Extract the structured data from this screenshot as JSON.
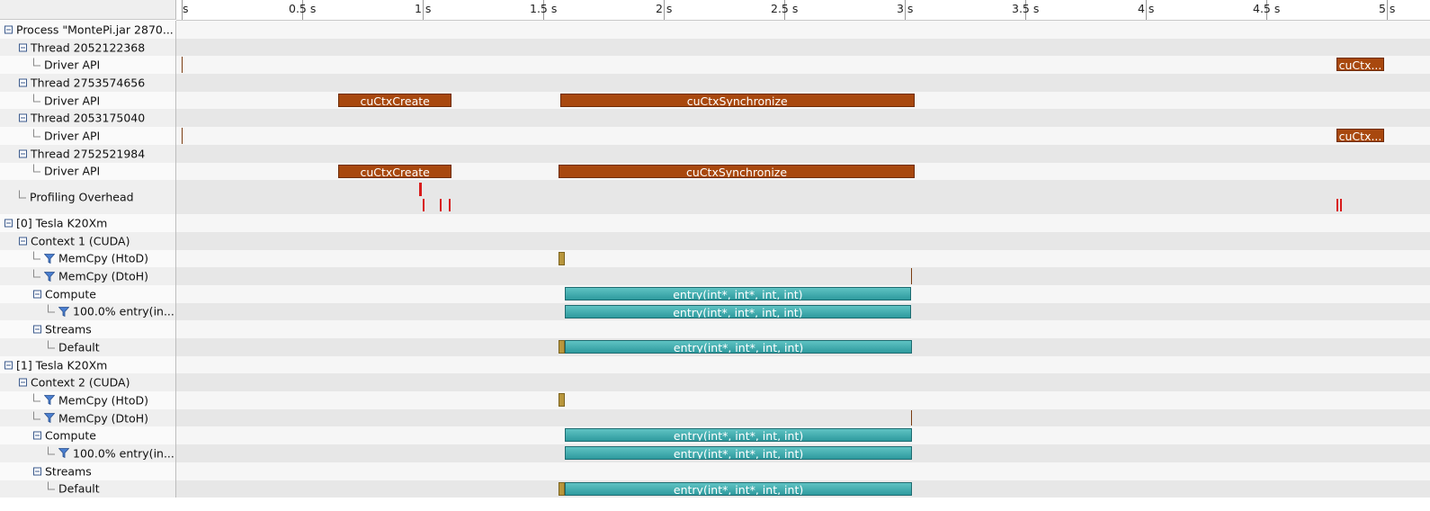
{
  "timeline": {
    "ruler": {
      "labels": [
        "s",
        "0.5 s",
        "1 s",
        "1.5 s",
        "2 s",
        "2.5 s",
        "3 s",
        "3.5 s",
        "4 s",
        "4.5 s",
        "5 s"
      ]
    },
    "rows": [
      {
        "label": "Process \"MontePi.jar 2870...",
        "indent": 0,
        "kind": "toggle"
      },
      {
        "label": "Thread 2052122368",
        "indent": 1,
        "kind": "toggle"
      },
      {
        "label": "Driver API",
        "indent": 2,
        "kind": "elbow"
      },
      {
        "label": "Thread 2753574656",
        "indent": 1,
        "kind": "toggle"
      },
      {
        "label": "Driver API",
        "indent": 2,
        "kind": "elbow"
      },
      {
        "label": "Thread 2053175040",
        "indent": 1,
        "kind": "toggle"
      },
      {
        "label": "Driver API",
        "indent": 2,
        "kind": "elbow"
      },
      {
        "label": "Thread 2752521984",
        "indent": 1,
        "kind": "toggle"
      },
      {
        "label": "Driver API",
        "indent": 2,
        "kind": "elbow"
      },
      {
        "label": "Profiling Overhead",
        "indent": 1,
        "kind": "elbow"
      },
      {
        "label": "[0] Tesla K20Xm",
        "indent": 0,
        "kind": "toggle"
      },
      {
        "label": "Context 1 (CUDA)",
        "indent": 1,
        "kind": "toggle"
      },
      {
        "label": "MemCpy (HtoD)",
        "indent": 2,
        "kind": "filter"
      },
      {
        "label": "MemCpy (DtoH)",
        "indent": 2,
        "kind": "filter"
      },
      {
        "label": "Compute",
        "indent": 2,
        "kind": "toggle"
      },
      {
        "label": "100.0% entry(in...",
        "indent": 3,
        "kind": "filter"
      },
      {
        "label": "Streams",
        "indent": 2,
        "kind": "toggle"
      },
      {
        "label": "Default",
        "indent": 3,
        "kind": "elbow"
      },
      {
        "label": "[1] Tesla K20Xm",
        "indent": 0,
        "kind": "toggle"
      },
      {
        "label": "Context 2 (CUDA)",
        "indent": 1,
        "kind": "toggle"
      },
      {
        "label": "MemCpy (HtoD)",
        "indent": 2,
        "kind": "filter"
      },
      {
        "label": "MemCpy (DtoH)",
        "indent": 2,
        "kind": "filter"
      },
      {
        "label": "Compute",
        "indent": 2,
        "kind": "toggle"
      },
      {
        "label": "100.0% entry(in...",
        "indent": 3,
        "kind": "filter"
      },
      {
        "label": "Streams",
        "indent": 2,
        "kind": "toggle"
      },
      {
        "label": "Default",
        "indent": 3,
        "kind": "elbow"
      }
    ],
    "events": [
      {
        "row": 2,
        "start": 0.0,
        "end": 0.006,
        "kind": "thin"
      },
      {
        "row": 2,
        "start": 4.79,
        "end": 4.99,
        "kind": "api",
        "label": "cuCtx..."
      },
      {
        "row": 4,
        "start": 0.65,
        "end": 1.12,
        "kind": "api",
        "label": "cuCtxCreate"
      },
      {
        "row": 4,
        "start": 1.57,
        "end": 3.04,
        "kind": "api",
        "label": "cuCtxSynchronize"
      },
      {
        "row": 6,
        "start": 0.0,
        "end": 0.006,
        "kind": "thin"
      },
      {
        "row": 6,
        "start": 4.79,
        "end": 4.99,
        "kind": "api",
        "label": "cuCtx..."
      },
      {
        "row": 8,
        "start": 0.65,
        "end": 1.12,
        "kind": "api",
        "label": "cuCtxCreate"
      },
      {
        "row": 8,
        "start": 1.565,
        "end": 3.04,
        "kind": "api",
        "label": "cuCtxSynchronize"
      },
      {
        "row": 12,
        "start": 1.565,
        "end": 1.59,
        "kind": "mem"
      },
      {
        "row": 13,
        "start": 3.025,
        "end": 3.03,
        "kind": "thin"
      },
      {
        "row": 14,
        "start": 1.59,
        "end": 3.025,
        "kind": "kern",
        "label": "entry(int*, int*, int, int)"
      },
      {
        "row": 15,
        "start": 1.59,
        "end": 3.025,
        "kind": "kern",
        "label": "entry(int*, int*, int, int)"
      },
      {
        "row": 17,
        "start": 1.565,
        "end": 1.59,
        "kind": "mem"
      },
      {
        "row": 17,
        "start": 1.59,
        "end": 3.03,
        "kind": "kern",
        "label": "entry(int*, int*, int, int)"
      },
      {
        "row": 20,
        "start": 1.565,
        "end": 1.59,
        "kind": "mem"
      },
      {
        "row": 21,
        "start": 3.025,
        "end": 3.03,
        "kind": "thin"
      },
      {
        "row": 22,
        "start": 1.59,
        "end": 3.03,
        "kind": "kern",
        "label": "entry(int*, int*, int, int)"
      },
      {
        "row": 23,
        "start": 1.59,
        "end": 3.03,
        "kind": "kern",
        "label": "entry(int*, int*, int, int)"
      },
      {
        "row": 25,
        "start": 1.565,
        "end": 1.59,
        "kind": "mem"
      },
      {
        "row": 25,
        "start": 1.59,
        "end": 3.03,
        "kind": "kern",
        "label": "entry(int*, int*, int, int)"
      }
    ],
    "overhead_marks": [
      0.985,
      0.99,
      1.0,
      1.07,
      1.11,
      4.79,
      4.805
    ]
  },
  "colors": {
    "api": "#a8480e",
    "kernel": "#3fabae",
    "memcpy": "#b8963c",
    "overhead": "#d81c1c"
  }
}
